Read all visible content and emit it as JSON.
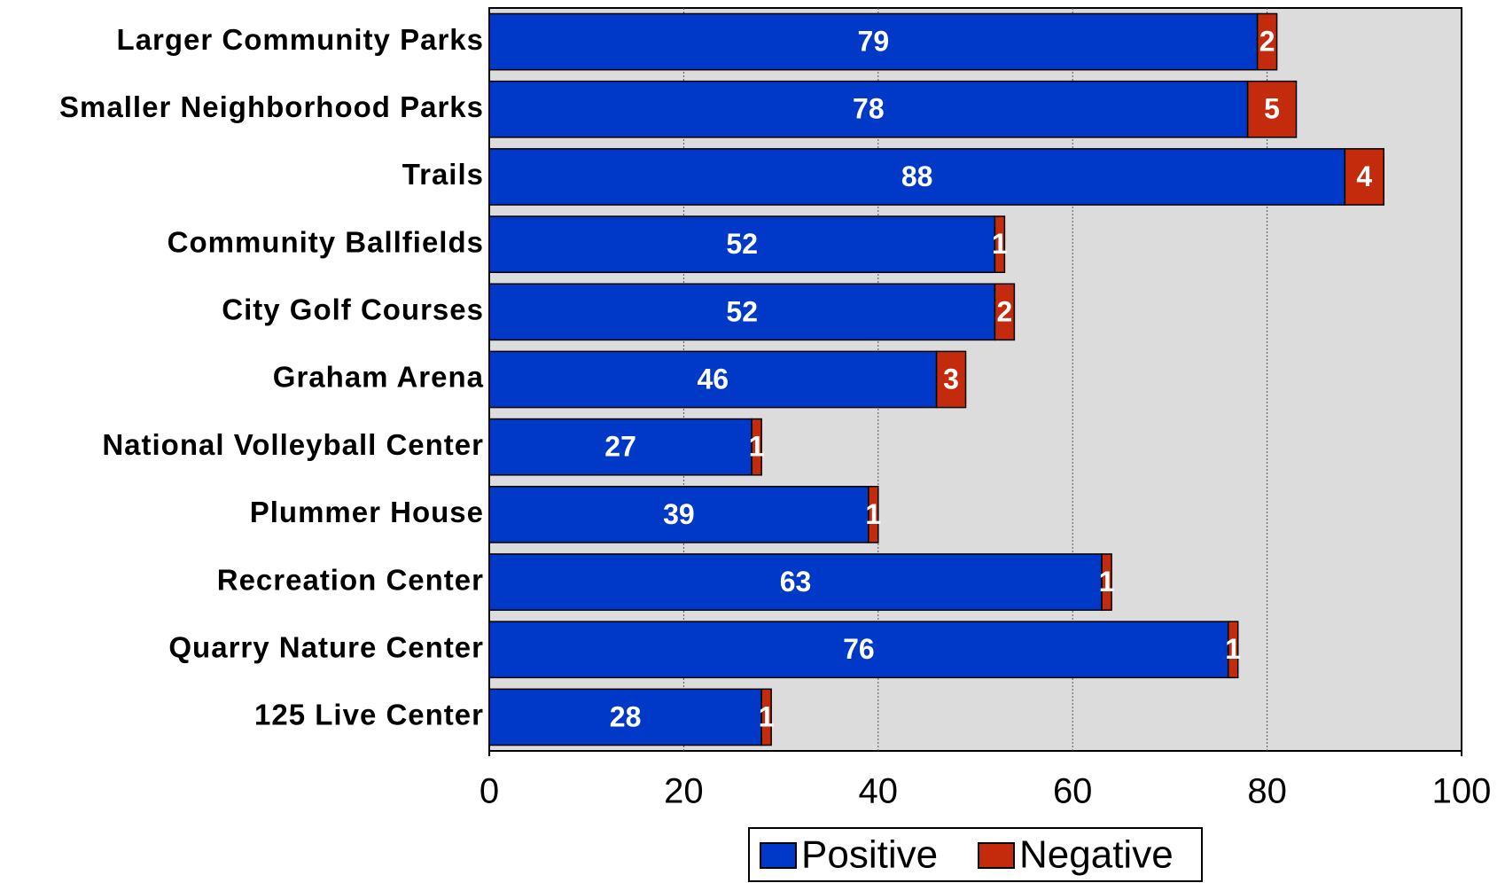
{
  "chart_data": {
    "type": "stacked_barh",
    "categories": [
      "Larger Community Parks",
      "Smaller Neighborhood Parks",
      "Trails",
      "Community Ballfields",
      "City Golf Courses",
      "Graham Arena",
      "National Volleyball Center",
      "Plummer House",
      "Recreation Center",
      "Quarry Nature Center",
      "125 Live Center"
    ],
    "series": [
      {
        "name": "Positive",
        "color": "#0038c8",
        "values": [
          79,
          78,
          88,
          52,
          52,
          46,
          27,
          39,
          63,
          76,
          28
        ]
      },
      {
        "name": "Negative",
        "color": "#c42a0c",
        "values": [
          2,
          5,
          4,
          1,
          2,
          3,
          1,
          1,
          1,
          1,
          1
        ]
      }
    ],
    "xlim": [
      0,
      100
    ],
    "xticks": [
      0,
      20,
      40,
      60,
      80,
      100
    ],
    "grid": true,
    "legend": "bottom"
  }
}
